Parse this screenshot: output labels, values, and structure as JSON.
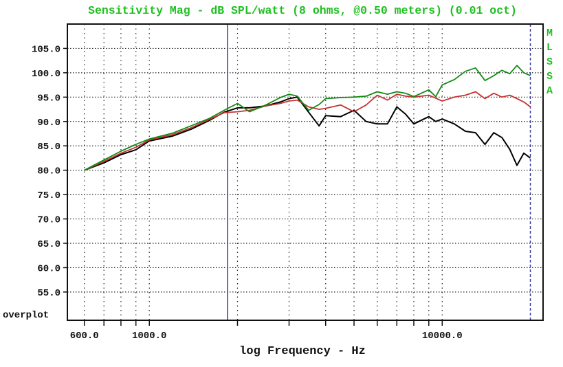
{
  "chart_data": {
    "type": "line",
    "title": "Sensitivity Mag - dB SPL/watt (8 ohms, @0.50 meters) (0.01 oct)",
    "xlabel": "log Frequency - Hz",
    "ylabel": "",
    "xscale": "log",
    "xlim": [
      525,
      22100
    ],
    "ylim": [
      49.2,
      110
    ],
    "grid": true,
    "x_tick_labels": [
      {
        "value": 600,
        "label": "600.0"
      },
      {
        "value": 1000,
        "label": "1000.0"
      },
      {
        "value": 10000,
        "label": "10000.0"
      }
    ],
    "x_grid_values": [
      600,
      700,
      800,
      900,
      1000,
      2000,
      3000,
      4000,
      5000,
      6000,
      7000,
      8000,
      9000,
      10000
    ],
    "y_ticks": [
      55,
      60,
      65,
      70,
      75,
      80,
      85,
      90,
      95,
      100,
      105
    ],
    "y_tick_labels": [
      "55.0",
      "60.0",
      "65.0",
      "70.0",
      "75.0",
      "80.0",
      "85.0",
      "90.0",
      "95.0",
      "100.0",
      "105.0"
    ],
    "corner_label": "overplot",
    "brand_label": "MLSSA",
    "markers": [
      {
        "x": 1850,
        "style": "solid",
        "color": "#3a3aa0"
      },
      {
        "x": 20000,
        "style": "dashed",
        "color": "#3a3aa0"
      }
    ],
    "colors": {
      "title": "#1fbf1f",
      "black": "#000000",
      "red": "#c83232",
      "green": "#128a12"
    },
    "x": [
      600,
      700,
      800,
      900,
      1000,
      1200,
      1400,
      1600,
      1800,
      2000,
      2200,
      2500,
      2800,
      3000,
      3200,
      3500,
      3800,
      4000,
      4500,
      5000,
      5500,
      6000,
      6500,
      7000,
      7500,
      8000,
      9000,
      9500,
      10000,
      11000,
      12000,
      13000,
      14000,
      15000,
      16000,
      17000,
      18000,
      19000,
      20000
    ],
    "series": [
      {
        "color": "#000000",
        "values": [
          80.0,
          81.5,
          83.2,
          84.2,
          86.0,
          87.0,
          88.5,
          90.2,
          91.9,
          92.8,
          92.8,
          93.2,
          94.0,
          94.7,
          95.0,
          91.9,
          89.1,
          91.2,
          91.0,
          92.3,
          90.0,
          89.5,
          89.5,
          93.0,
          91.5,
          89.5,
          91.0,
          90.0,
          90.5,
          89.5,
          88.0,
          87.7,
          85.3,
          87.7,
          86.7,
          84.3,
          81.0,
          83.5,
          82.5
        ]
      },
      {
        "color": "#c83232",
        "values": [
          80.0,
          81.8,
          83.5,
          84.7,
          86.2,
          87.3,
          88.8,
          90.4,
          91.8,
          92.0,
          92.3,
          93.2,
          93.7,
          94.2,
          94.4,
          93.0,
          92.5,
          92.7,
          93.4,
          92.0,
          93.4,
          95.4,
          94.4,
          95.6,
          95.2,
          95.0,
          95.4,
          94.8,
          94.2,
          95.0,
          95.4,
          96.1,
          94.7,
          95.8,
          95.0,
          95.4,
          94.7,
          94.0,
          93.0
        ]
      },
      {
        "color": "#128a12",
        "values": [
          80.0,
          82.1,
          83.9,
          85.3,
          86.4,
          87.6,
          89.2,
          90.6,
          92.3,
          93.7,
          92.0,
          93.4,
          94.9,
          95.6,
          95.2,
          92.3,
          93.5,
          94.7,
          94.9,
          95.0,
          95.2,
          96.1,
          95.6,
          96.1,
          95.8,
          95.1,
          96.5,
          95.1,
          97.5,
          98.6,
          100.3,
          101.0,
          98.4,
          99.4,
          100.5,
          99.8,
          101.5,
          100.0,
          99.4
        ]
      }
    ]
  }
}
